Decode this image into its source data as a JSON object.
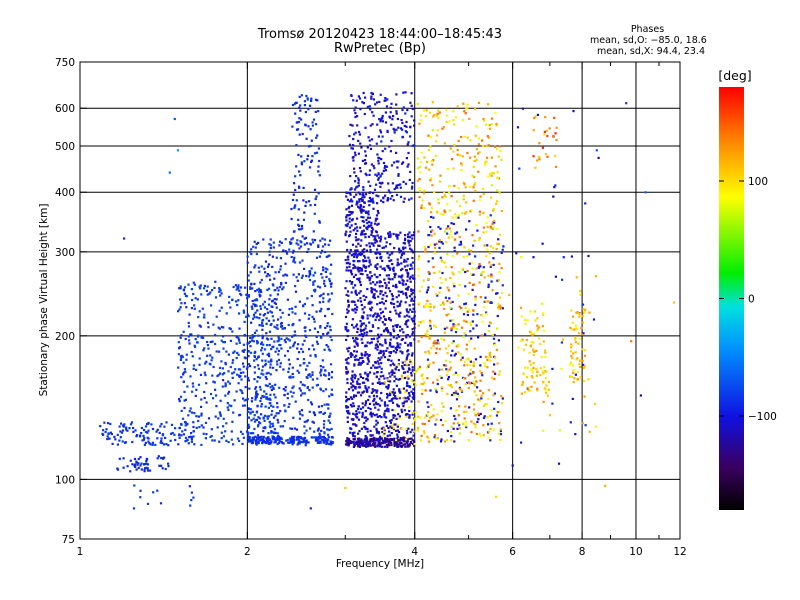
{
  "title": {
    "line1": "Tromsø 20120423 18:44:00–18:45:43",
    "line2": "RwPretec (Bp)"
  },
  "phases_box": {
    "heading": "Phases",
    "line_o": "mean, sd,O: −85.0, 18.6",
    "line_x": "mean, sd,X:  94.4, 23.4"
  },
  "chart_data": {
    "type": "scatter",
    "xlabel": "Frequency [MHz]",
    "ylabel": "Stationary phase Virtual Height [km]",
    "x_scale": "log",
    "y_scale": "log",
    "xlim": [
      1,
      12
    ],
    "ylim": [
      75,
      750
    ],
    "x_ticks": [
      "1",
      "2",
      "4",
      "6",
      "8",
      "10",
      "12"
    ],
    "x_tick_values": [
      1,
      2,
      4,
      6,
      8,
      10,
      12
    ],
    "x_minor_tick_values": [
      3,
      5,
      7,
      9,
      11
    ],
    "y_ticks": [
      "75",
      "100",
      "200",
      "300",
      "400",
      "500",
      "600",
      "750"
    ],
    "y_tick_values": [
      75,
      100,
      200,
      300,
      400,
      500,
      600,
      750
    ],
    "grid": true,
    "colorbar": {
      "title": "[deg]",
      "range": [
        -180,
        180
      ],
      "ticks": [
        "100",
        "0",
        "−100"
      ],
      "tick_values": [
        100,
        0,
        -100
      ]
    },
    "series": [
      {
        "name": "O",
        "phase_mean": -85.0,
        "phase_sd": 18.6,
        "regions": [
          {
            "x": [
              1.08,
              1.6
            ],
            "y": [
              118,
              132
            ],
            "n": 120,
            "phase": [
              -90,
              -80
            ]
          },
          {
            "x": [
              1.15,
              1.45
            ],
            "y": [
              104,
              112
            ],
            "n": 50,
            "phase": [
              -95,
              -85
            ]
          },
          {
            "x": [
              1.25,
              1.6
            ],
            "y": [
              88,
              98
            ],
            "n": 12,
            "phase": [
              -90,
              -80
            ]
          },
          {
            "x": [
              1.5,
              2.3
            ],
            "y": [
              118,
              260
            ],
            "n": 520,
            "phase": [
              -90,
              -75
            ]
          },
          {
            "x": [
              2.0,
              2.85
            ],
            "y": [
              118,
              320
            ],
            "n": 620,
            "phase": [
              -95,
              -75
            ]
          },
          {
            "x": [
              2.4,
              2.7
            ],
            "y": [
              300,
              640
            ],
            "n": 120,
            "phase": [
              -95,
              -80
            ]
          },
          {
            "x": [
              2.0,
              2.85
            ],
            "y": [
              119,
              123
            ],
            "n": 160,
            "phase": [
              -90,
              -85
            ]
          },
          {
            "x": [
              3.0,
              3.45
            ],
            "y": [
              118,
              400
            ],
            "n": 700,
            "phase": [
              -120,
              -95
            ]
          },
          {
            "x": [
              3.05,
              4.0
            ],
            "y": [
              380,
              650
            ],
            "n": 260,
            "phase": [
              -115,
              -90
            ]
          },
          {
            "x": [
              3.45,
              4.0
            ],
            "y": [
              120,
              330
            ],
            "n": 560,
            "phase": [
              -120,
              -95
            ]
          },
          {
            "x": [
              3.0,
              4.0
            ],
            "y": [
              117,
              122
            ],
            "n": 200,
            "phase": [
              -140,
              -110
            ]
          },
          {
            "x": [
              4.2,
              5.8
            ],
            "y": [
              120,
              360
            ],
            "n": 200,
            "phase": [
              -110,
              -85
            ]
          },
          {
            "x": [
              6.0,
              8.6
            ],
            "y": [
              100,
              600
            ],
            "n": 35,
            "phase": [
              -120,
              -80
            ]
          }
        ]
      },
      {
        "name": "X",
        "phase_mean": 94.4,
        "phase_sd": 23.4,
        "regions": [
          {
            "x": [
              4.05,
              5.75
            ],
            "y": [
              120,
              620
            ],
            "n": 620,
            "phase": [
              70,
              150
            ]
          },
          {
            "x": [
              3.5,
              4.3
            ],
            "y": [
              118,
              180
            ],
            "n": 60,
            "phase": [
              80,
              120
            ]
          },
          {
            "x": [
              6.2,
              6.9
            ],
            "y": [
              150,
              230
            ],
            "n": 90,
            "phase": [
              80,
              130
            ]
          },
          {
            "x": [
              7.6,
              8.1
            ],
            "y": [
              160,
              230
            ],
            "n": 60,
            "phase": [
              90,
              130
            ]
          },
          {
            "x": [
              6.5,
              7.2
            ],
            "y": [
              450,
              580
            ],
            "n": 25,
            "phase": [
              100,
              170
            ]
          },
          {
            "x": [
              5.9,
              8.5
            ],
            "y": [
              120,
              300
            ],
            "n": 30,
            "phase": [
              70,
              140
            ]
          }
        ]
      }
    ],
    "outliers": [
      {
        "x": 1.48,
        "y": 570,
        "phase": -70
      },
      {
        "x": 1.45,
        "y": 440,
        "phase": -60
      },
      {
        "x": 1.5,
        "y": 490,
        "phase": -40
      },
      {
        "x": 1.2,
        "y": 320,
        "phase": -90
      },
      {
        "x": 1.25,
        "y": 87,
        "phase": -80
      },
      {
        "x": 9.6,
        "y": 615,
        "phase": -80
      },
      {
        "x": 10.4,
        "y": 400,
        "phase": -60
      },
      {
        "x": 11.7,
        "y": 235,
        "phase": 110
      },
      {
        "x": 9.8,
        "y": 195,
        "phase": 140
      },
      {
        "x": 8.8,
        "y": 97,
        "phase": 120
      },
      {
        "x": 8.5,
        "y": 490,
        "phase": -70
      },
      {
        "x": 5.6,
        "y": 92,
        "phase": 100
      },
      {
        "x": 3.0,
        "y": 96,
        "phase": 110
      },
      {
        "x": 2.6,
        "y": 87,
        "phase": -90
      },
      {
        "x": 10.2,
        "y": 150,
        "phase": -130
      },
      {
        "x": 6.0,
        "y": 107,
        "phase": -110
      }
    ]
  }
}
